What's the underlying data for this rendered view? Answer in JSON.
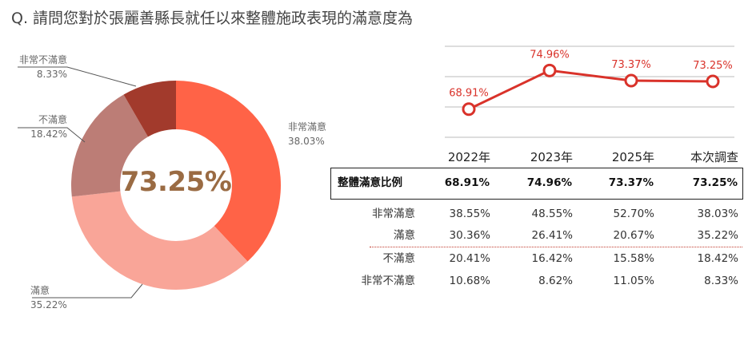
{
  "title": "Q. 請問您對於張麗善縣長就任以來整體施政表現的滿意度為",
  "donut": {
    "center_value": "73.25%",
    "segments": [
      {
        "name": "非常滿意",
        "pct": "38.03%",
        "value": 38.03,
        "color": "#FF6347"
      },
      {
        "name": "滿意",
        "pct": "35.22%",
        "value": 35.22,
        "color": "#F9A598"
      },
      {
        "name": "不滿意",
        "pct": "18.42%",
        "value": 18.42,
        "color": "#BC7D76"
      },
      {
        "name": "非常不滿意",
        "pct": "8.33%",
        "value": 8.33,
        "color": "#A23A2C"
      }
    ]
  },
  "chart_data": {
    "type": "line",
    "x": [
      "2022年",
      "2023年",
      "2025年",
      "本次調查"
    ],
    "series": [
      {
        "values": [
          68.91,
          74.96,
          73.37,
          73.25
        ],
        "labels": [
          "68.91%",
          "74.96%",
          "73.37%",
          "73.25%"
        ],
        "color": "#D9322A"
      }
    ],
    "ylim": [
      60,
      80
    ],
    "grid": true
  },
  "table": {
    "columns": [
      "2022年",
      "2023年",
      "2025年",
      "本次調查"
    ],
    "highlight": {
      "label": "整體滿意比例",
      "values": [
        "68.91%",
        "74.96%",
        "73.37%",
        "73.25%"
      ]
    },
    "rows": [
      {
        "label": "非常滿意",
        "values": [
          "38.55%",
          "48.55%",
          "52.70%",
          "38.03%"
        ]
      },
      {
        "label": "滿意",
        "values": [
          "30.36%",
          "26.41%",
          "20.67%",
          "35.22%"
        ]
      },
      {
        "label": "不滿意",
        "values": [
          "20.41%",
          "16.42%",
          "15.58%",
          "18.42%"
        ]
      },
      {
        "label": "非常不滿意",
        "values": [
          "10.68%",
          "8.62%",
          "11.05%",
          "8.33%"
        ]
      }
    ]
  }
}
